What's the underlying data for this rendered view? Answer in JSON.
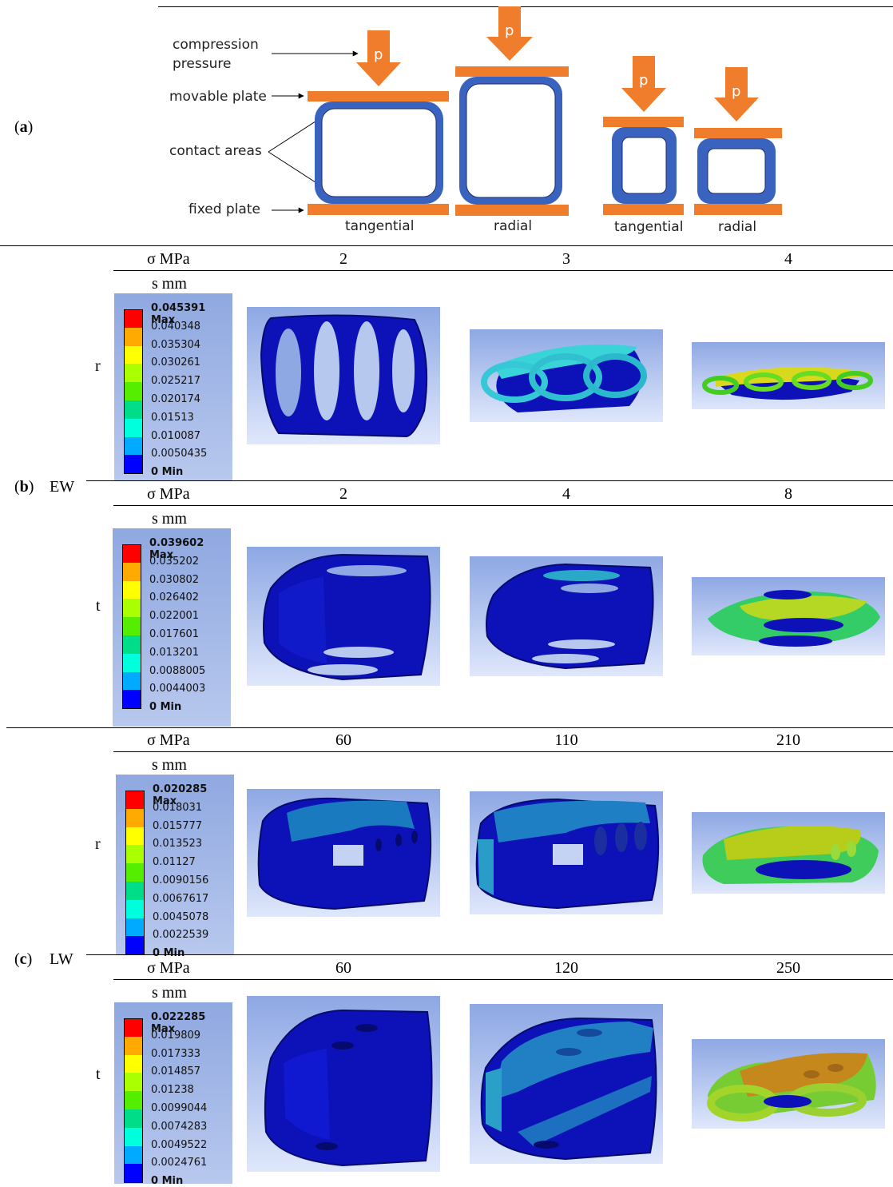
{
  "panel_a": {
    "label": "(a)",
    "label_bold": "a",
    "annotations": {
      "compression": "compression",
      "pressure": "pressure",
      "movable_plate": "movable plate",
      "contact_areas": "contact areas",
      "fixed_plate": "fixed plate"
    },
    "load_symbol": "p",
    "orientations": [
      "tangential",
      "radial",
      "tangential",
      "radial"
    ],
    "colors": {
      "plate": "#ef7d2c",
      "arrow": "#ef7d2c",
      "tube": "#3a63c0"
    }
  },
  "panel_b": {
    "label_open": "(",
    "label_bold": "b",
    "label_close": ")",
    "name": "EW",
    "blocks": [
      {
        "row_label": "r",
        "sigma_label": "σ MPa",
        "s_label": "s mm",
        "stresses": [
          "2",
          "3",
          "4"
        ],
        "legend": [
          "0.045391 Max",
          "0.040348",
          "0.035304",
          "0.030261",
          "0.025217",
          "0.020174",
          "0.01513",
          "0.010087",
          "0.0050435",
          "0 Min"
        ]
      },
      {
        "row_label": "t",
        "sigma_label": "σ MPa",
        "s_label": "s mm",
        "stresses": [
          "2",
          "4",
          "8"
        ],
        "legend": [
          "0.039602 Max",
          "0.035202",
          "0.030802",
          "0.026402",
          "0.022001",
          "0.017601",
          "0.013201",
          "0.0088005",
          "0.0044003",
          "0 Min"
        ]
      }
    ]
  },
  "panel_c": {
    "label_open": "(",
    "label_bold": "c",
    "label_close": ")",
    "name": "LW",
    "blocks": [
      {
        "row_label": "r",
        "sigma_label": "σ MPa",
        "s_label": "s mm",
        "stresses": [
          "60",
          "110",
          "210"
        ],
        "legend": [
          "0.020285 Max",
          "0.018031",
          "0.015777",
          "0.013523",
          "0.01127",
          "0.0090156",
          "0.0067617",
          "0.0045078",
          "0.0022539",
          "0 Min"
        ]
      },
      {
        "row_label": "t",
        "sigma_label": "σ MPa",
        "s_label": "s mm",
        "stresses": [
          "60",
          "120",
          "250"
        ],
        "legend": [
          "0.022285 Max",
          "0.019809",
          "0.017333",
          "0.014857",
          "0.01238",
          "0.0099044",
          "0.0074283",
          "0.0049522",
          "0.0024761",
          "0 Min"
        ]
      }
    ]
  },
  "legend_colors": [
    "#ff0000",
    "#ffaa00",
    "#ffff00",
    "#aaff00",
    "#55ee00",
    "#00dd88",
    "#00ffdd",
    "#00aaff",
    "#0000ff"
  ]
}
